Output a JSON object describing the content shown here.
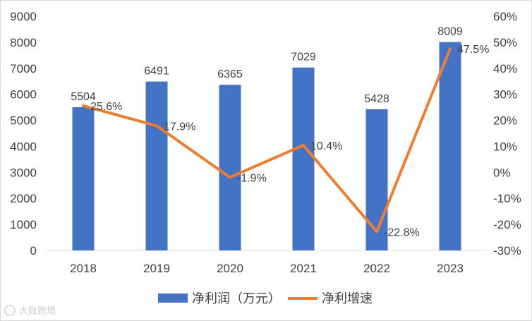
{
  "chart_data": {
    "type": "bar+line",
    "categories": [
      "2018",
      "2019",
      "2020",
      "2021",
      "2022",
      "2023"
    ],
    "series": [
      {
        "name": "净利润（万元）",
        "type": "bar",
        "axis": "left",
        "values": [
          5504,
          6491,
          6365,
          7029,
          5428,
          8009
        ],
        "labels": [
          "5504",
          "6491",
          "6365",
          "7029",
          "5428",
          "8009"
        ],
        "color": "#4472c4"
      },
      {
        "name": "净利增速",
        "type": "line",
        "axis": "right",
        "values": [
          25.6,
          17.9,
          -1.9,
          10.4,
          -22.8,
          47.5
        ],
        "labels": [
          "25.6%",
          "17.9%",
          "-1.9%",
          "10.4%",
          "-22.8%",
          "47.5%"
        ],
        "color": "#ed7d31"
      }
    ],
    "y_left": {
      "ylim": [
        0,
        9000
      ],
      "ticks": [
        "0",
        "1000",
        "2000",
        "3000",
        "4000",
        "5000",
        "6000",
        "7000",
        "8000",
        "9000"
      ]
    },
    "y_right": {
      "ylim": [
        -30,
        60
      ],
      "ticks": [
        "-30%",
        "-20%",
        "-10%",
        "0%",
        "10%",
        "20%",
        "30%",
        "40%",
        "50%",
        "60%"
      ]
    },
    "grid": false,
    "legend": "bottom"
  },
  "watermark": "大数跨境"
}
